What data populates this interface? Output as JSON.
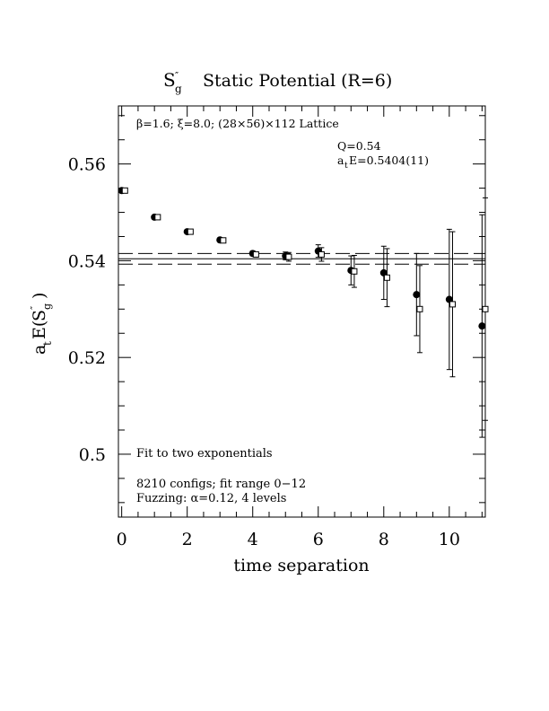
{
  "chart_data": {
    "type": "scatter",
    "title": "Static Potential (R=6)",
    "title_symbol": {
      "base": "S",
      "prime": "″",
      "sub": "g"
    },
    "xlabel": "time separation",
    "ylabel": {
      "prefix": "a",
      "prefix_sub": "t",
      "func": "E(",
      "base": "S",
      "prime": "″",
      "sub": "g",
      "suffix": ")"
    },
    "xlim": [
      -0.1,
      11.1
    ],
    "ylim": [
      0.487,
      0.572
    ],
    "xticks": [
      0,
      2,
      4,
      6,
      8,
      10
    ],
    "xtick_labels": [
      "0",
      "2",
      "4",
      "6",
      "8",
      "10"
    ],
    "yticks": [
      0.5,
      0.52,
      0.54,
      0.56
    ],
    "ytick_labels": [
      "0.5",
      "0.52",
      "0.54",
      "0.56"
    ],
    "annotations": {
      "lattice": "β=1.6; ξ=8.0; (28×56)×112 Lattice",
      "q_value": "Q=0.54",
      "energy": {
        "prefix": "a",
        "sub": "t",
        "rest": "E=0.5404(11)"
      },
      "fit_note": "Fit to two exponentials",
      "configs": "8210 configs; fit range 0−12",
      "fuzzing": "Fuzzing: α=0.12, 4 levels"
    },
    "fit": {
      "value": 0.5404,
      "upper": 0.5415,
      "lower": 0.5393,
      "x_range": [
        -0.1,
        11.1
      ]
    },
    "series": [
      {
        "marker": "filled-circle",
        "x": [
          0,
          1,
          2,
          3,
          4,
          5,
          6,
          7,
          8,
          9,
          10,
          11
        ],
        "y": [
          0.5545,
          0.549,
          0.546,
          0.5443,
          0.5415,
          0.541,
          0.542,
          0.538,
          0.5375,
          0.533,
          0.532,
          0.5265
        ],
        "err": [
          0.0002,
          0.0003,
          0.0003,
          0.0004,
          0.0005,
          0.0008,
          0.0013,
          0.003,
          0.0055,
          0.0085,
          0.0145,
          0.023
        ]
      },
      {
        "marker": "open-square",
        "x": [
          0.1,
          1.1,
          2.1,
          3.1,
          4.1,
          5.1,
          6.1,
          7.1,
          8.1,
          9.1,
          10.1,
          11.1
        ],
        "y": [
          0.5545,
          0.549,
          0.546,
          0.5442,
          0.5413,
          0.5408,
          0.5413,
          0.5378,
          0.5365,
          0.53,
          0.531,
          0.53
        ],
        "err": [
          0.0002,
          0.0003,
          0.0003,
          0.0004,
          0.0005,
          0.0009,
          0.0014,
          0.0033,
          0.006,
          0.009,
          0.015,
          0.023
        ]
      }
    ],
    "grid": false,
    "legend": "none"
  }
}
